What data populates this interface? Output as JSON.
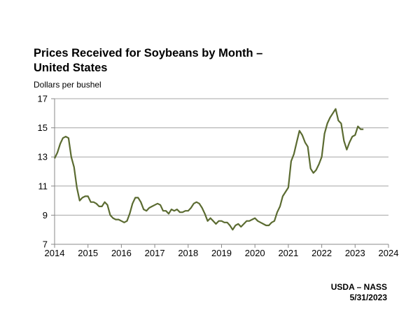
{
  "chart_data": {
    "type": "line",
    "title": "Prices Received for Soybeans by Month –",
    "title_line2": "United States",
    "ylabel": "Dollars per bushel",
    "xlabel": "",
    "x_start": "2014-01",
    "x_step": "month",
    "xlim": [
      2014,
      2024
    ],
    "ylim": [
      7,
      17
    ],
    "xticks": [
      "2014",
      "2015",
      "2016",
      "2017",
      "2018",
      "2019",
      "2020",
      "2021",
      "2022",
      "2023",
      "2024"
    ],
    "yticks": [
      "7",
      "9",
      "11",
      "13",
      "15",
      "17"
    ],
    "grid": "horizontal",
    "line_color": "#5b6b31",
    "values": [
      12.9,
      13.3,
      13.9,
      14.3,
      14.4,
      14.3,
      13.0,
      12.3,
      10.9,
      10.0,
      10.2,
      10.3,
      10.3,
      9.9,
      9.9,
      9.8,
      9.6,
      9.6,
      9.9,
      9.7,
      9.0,
      8.8,
      8.7,
      8.7,
      8.6,
      8.5,
      8.6,
      9.1,
      9.8,
      10.2,
      10.2,
      9.9,
      9.4,
      9.3,
      9.5,
      9.6,
      9.7,
      9.8,
      9.7,
      9.3,
      9.3,
      9.1,
      9.4,
      9.3,
      9.4,
      9.2,
      9.2,
      9.3,
      9.3,
      9.5,
      9.8,
      9.9,
      9.8,
      9.5,
      9.1,
      8.6,
      8.8,
      8.6,
      8.4,
      8.6,
      8.6,
      8.5,
      8.5,
      8.3,
      8.0,
      8.3,
      8.4,
      8.2,
      8.4,
      8.6,
      8.6,
      8.7,
      8.8,
      8.6,
      8.5,
      8.4,
      8.3,
      8.3,
      8.5,
      8.6,
      9.2,
      9.6,
      10.3,
      10.6,
      10.9,
      12.7,
      13.2,
      14.0,
      14.8,
      14.5,
      14.0,
      13.7,
      12.2,
      11.9,
      12.1,
      12.5,
      13.0,
      14.6,
      15.3,
      15.7,
      16.0,
      16.3,
      15.5,
      15.3,
      14.1,
      13.5,
      14.0,
      14.4,
      14.5,
      15.1,
      14.9,
      14.9
    ]
  },
  "footer": {
    "source": "USDA – NASS",
    "date": "5/31/2023"
  }
}
